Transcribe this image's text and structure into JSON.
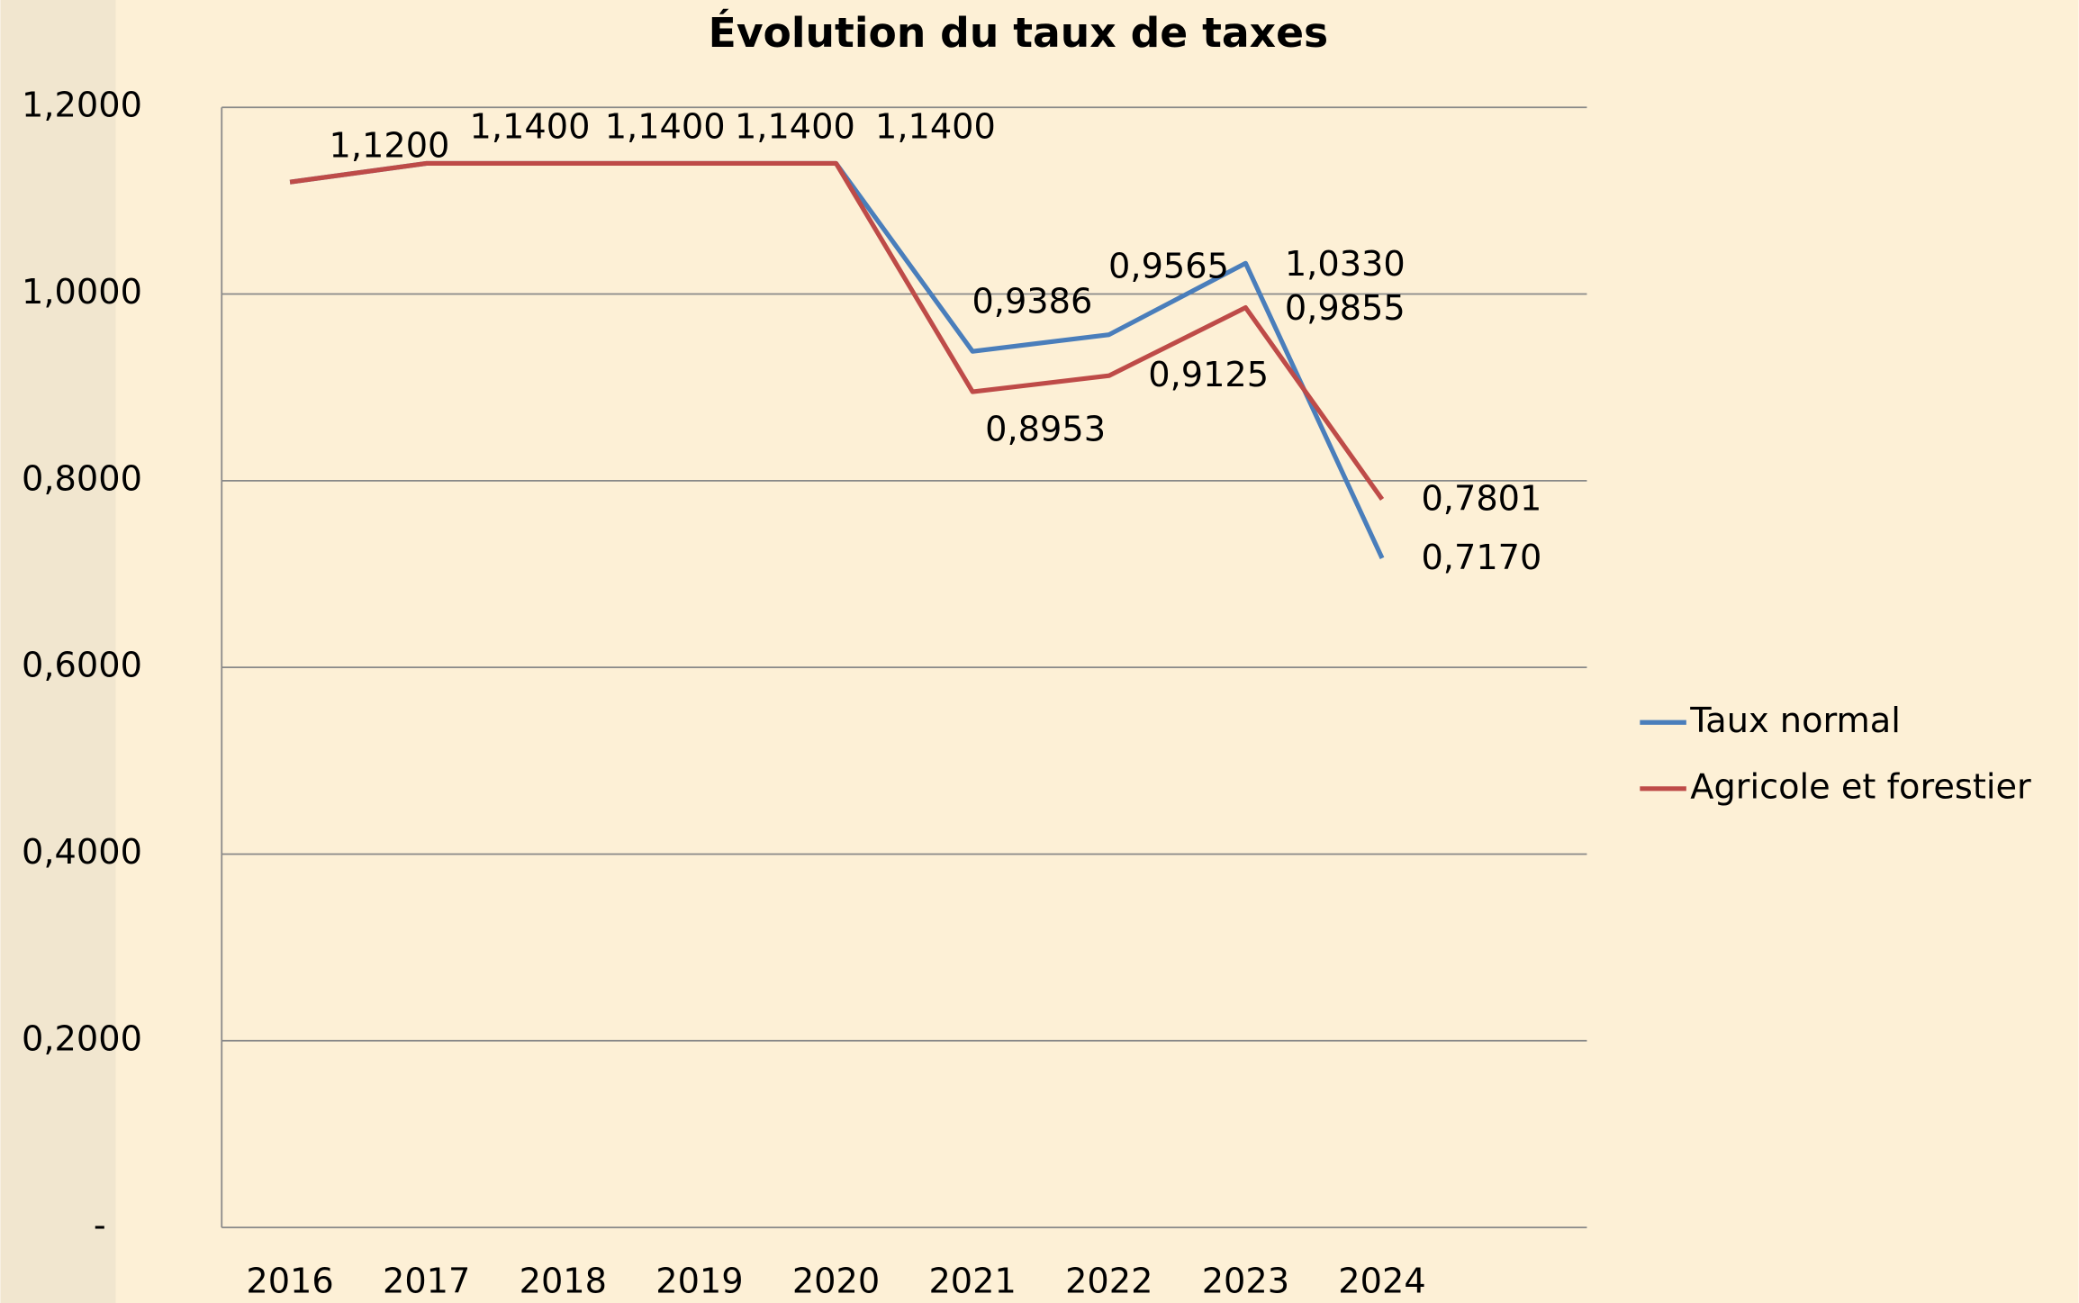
{
  "chart_data": {
    "type": "line",
    "title": "Évolution du taux de taxes",
    "categories": [
      "2016",
      "2017",
      "2018",
      "2019",
      "2020",
      "2021",
      "2022",
      "2023",
      "2024"
    ],
    "series": [
      {
        "name": "Taux normal",
        "color": "#4a7ebb",
        "values": [
          1.12,
          1.14,
          1.14,
          1.14,
          1.14,
          0.9386,
          0.9565,
          1.033,
          0.717
        ],
        "value_labels": [
          null,
          null,
          null,
          null,
          null,
          "0,9386",
          "0,9565",
          "1,0330",
          "0,7170"
        ]
      },
      {
        "name": "Agricole et forestier",
        "color": "#be4b48",
        "values": [
          1.12,
          1.14,
          1.14,
          1.14,
          1.14,
          0.8953,
          0.9125,
          0.9855,
          0.7801
        ],
        "value_labels": [
          "1,1200",
          "1,1400",
          "1,1400",
          "1,1400",
          "1,1400",
          "0,8953",
          "0,9125",
          "0,9855",
          "0,7801"
        ]
      }
    ],
    "ylim": [
      0,
      1.2
    ],
    "yticks": [
      {
        "value": 0,
        "label": "-"
      },
      {
        "value": 0.2,
        "label": "0,2000"
      },
      {
        "value": 0.4,
        "label": "0,4000"
      },
      {
        "value": 0.6,
        "label": "0,6000"
      },
      {
        "value": 0.8,
        "label": "0,8000"
      },
      {
        "value": 1.0,
        "label": "1,0000"
      },
      {
        "value": 1.2,
        "label": "1,2000"
      }
    ],
    "grid": true,
    "legend": "right"
  }
}
